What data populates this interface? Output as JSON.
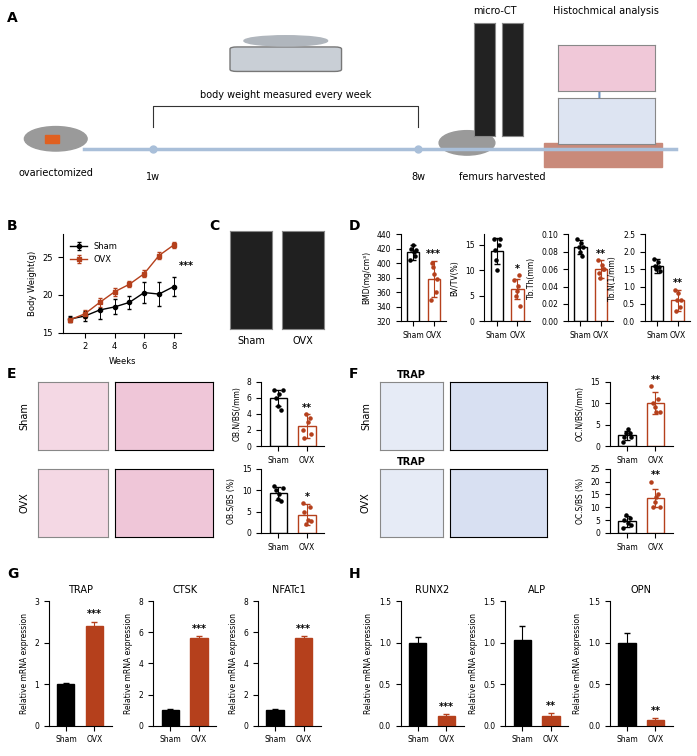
{
  "panel_labels": [
    "A",
    "B",
    "C",
    "D",
    "E",
    "F",
    "G",
    "H"
  ],
  "schematic": {
    "ovx_label": "ovariectomized",
    "measure_label": "body weight measured every week",
    "start": "1w",
    "end": "8w",
    "harvest_label": "femurs harvested",
    "microct_label": "micro-CT",
    "histo_label": "Histochmical analysis"
  },
  "image_labels": {
    "C": [
      "Sham",
      "OVX"
    ],
    "E": [
      "Sham",
      "OVX"
    ],
    "F": {
      "stain": "TRAP",
      "groups": [
        "Sham",
        "OVX"
      ]
    }
  },
  "chart_data": [
    {
      "type": "line",
      "xlabel": "Weeks",
      "ylabel": "Body Weight(g)",
      "x": [
        1,
        2,
        3,
        4,
        5,
        6,
        7,
        8
      ],
      "series": [
        {
          "name": "Sham",
          "color": "#000000",
          "marker": "circle",
          "values": [
            16.8,
            17.2,
            18.0,
            18.4,
            19.0,
            20.3,
            20.1,
            21.1
          ],
          "errors": [
            0.4,
            0.6,
            1.2,
            1.0,
            0.9,
            1.4,
            1.6,
            1.2
          ]
        },
        {
          "name": "OVX",
          "color": "#b5401c",
          "marker": "square",
          "values": [
            16.7,
            17.5,
            19.0,
            20.4,
            21.4,
            22.8,
            25.2,
            26.6
          ],
          "errors": [
            0.3,
            0.5,
            0.6,
            0.5,
            0.4,
            0.5,
            0.5,
            0.4
          ]
        }
      ],
      "xlim": [
        0.5,
        8.5
      ],
      "xticks": [
        2,
        4,
        6,
        8
      ],
      "ylim": [
        15,
        28
      ],
      "yticks": [
        15,
        20,
        25
      ],
      "legend": "upper left",
      "annotation": "***"
    },
    {
      "type": "bar",
      "ylabel": "BMD(mg/cm³)",
      "categories": [
        "Sham",
        "OVX"
      ],
      "colors": [
        "#000000",
        "#b5401c"
      ],
      "values": [
        415,
        378
      ],
      "errors": [
        10,
        25
      ],
      "points": [
        [
          405,
          420,
          425,
          415,
          410,
          418
        ],
        [
          350,
          400,
          395,
          385,
          360,
          378
        ]
      ],
      "ylim": [
        320,
        440
      ],
      "yticks": [
        320,
        340,
        360,
        380,
        400,
        420,
        440
      ],
      "annotation": "***"
    },
    {
      "type": "bar",
      "ylabel": "BV/TV(%)",
      "categories": [
        "Sham",
        "OVX"
      ],
      "colors": [
        "#000000",
        "#b5401c"
      ],
      "values": [
        13.8,
        6.3
      ],
      "errors": [
        2.5,
        2.0
      ],
      "points": [
        [
          16,
          14,
          12,
          10,
          15,
          16
        ],
        [
          8,
          5,
          6,
          7,
          9,
          3
        ]
      ],
      "ylim": [
        0,
        17
      ],
      "yticks": [
        0,
        5,
        10,
        15
      ],
      "annotation": "*"
    },
    {
      "type": "bar",
      "ylabel": "Tb.Th(mm)",
      "categories": [
        "Sham",
        "OVX"
      ],
      "colors": [
        "#000000",
        "#b5401c"
      ],
      "values": [
        0.085,
        0.06
      ],
      "errors": [
        0.008,
        0.01
      ],
      "points": [
        [
          0.095,
          0.085,
          0.08,
          0.09,
          0.075,
          0.085
        ],
        [
          0.07,
          0.055,
          0.05,
          0.065,
          0.06,
          0.06
        ]
      ],
      "ylim": [
        0,
        0.1
      ],
      "yticks": [
        {
          "value": 0,
          "label": "0.00"
        },
        {
          "value": 0.02,
          "label": "0.02"
        },
        {
          "value": 0.04,
          "label": "0.04"
        },
        {
          "value": 0.06,
          "label": "0.06"
        },
        {
          "value": 0.08,
          "label": "0.08"
        },
        {
          "value": 0.1,
          "label": "0.10"
        }
      ],
      "annotation": "**"
    },
    {
      "type": "bar",
      "ylabel": "Tb.N(1/mm)",
      "categories": [
        "Sham",
        "OVX"
      ],
      "colors": [
        "#000000",
        "#b5401c"
      ],
      "values": [
        1.6,
        0.6
      ],
      "errors": [
        0.2,
        0.3
      ],
      "points": [
        [
          1.8,
          1.6,
          1.5,
          1.7,
          1.55,
          1.45
        ],
        [
          0.9,
          0.3,
          0.6,
          0.8,
          0.4,
          0.6
        ]
      ],
      "ylim": [
        0,
        2.5
      ],
      "yticks": [
        {
          "value": 0,
          "label": "0.0"
        },
        {
          "value": 0.5,
          "label": "0.5"
        },
        {
          "value": 1,
          "label": "1.0"
        },
        {
          "value": 1.5,
          "label": "1.5"
        },
        {
          "value": 2,
          "label": "2.0"
        },
        {
          "value": 2.5,
          "label": "2.5"
        }
      ],
      "annotation": "**"
    },
    {
      "type": "bar",
      "ylabel": "OB.N/BS(/mm)",
      "categories": [
        "Sham",
        "OVX"
      ],
      "colors": [
        "#000000",
        "#b5401c"
      ],
      "values": [
        6.0,
        2.5
      ],
      "errors": [
        1.0,
        1.5
      ],
      "points": [
        [
          7,
          6,
          5,
          6.5,
          4.5,
          7
        ],
        [
          2,
          1,
          4,
          3,
          3.5,
          1.5
        ]
      ],
      "ylim": [
        0,
        8
      ],
      "yticks": [
        0,
        2,
        4,
        6,
        8
      ],
      "annotation": "**"
    },
    {
      "type": "bar",
      "ylabel": "OB.S/BS (%)",
      "categories": [
        "Sham",
        "OVX"
      ],
      "colors": [
        "#000000",
        "#b5401c"
      ],
      "values": [
        9.3,
        4.3
      ],
      "errors": [
        1.5,
        2.5
      ],
      "points": [
        [
          11,
          10,
          8,
          9,
          7.5,
          10.5
        ],
        [
          7,
          5,
          2,
          3,
          6,
          2.8
        ]
      ],
      "ylim": [
        0,
        15
      ],
      "yticks": [
        0,
        5,
        10,
        15
      ],
      "annotation": "*"
    },
    {
      "type": "bar",
      "ylabel": "OC.N/BS(/mm)",
      "categories": [
        "Sham",
        "OVX"
      ],
      "colors": [
        "#000000",
        "#b5401c"
      ],
      "values": [
        2.5,
        10
      ],
      "errors": [
        1.0,
        2.5
      ],
      "points": [
        [
          1,
          2,
          3,
          4,
          3,
          2
        ],
        [
          14,
          10,
          9,
          8,
          11,
          8
        ]
      ],
      "ylim": [
        0,
        15
      ],
      "yticks": [
        0,
        5,
        10,
        15
      ],
      "annotation": "**"
    },
    {
      "type": "bar",
      "ylabel": "OC.S/BS (%)",
      "categories": [
        "Sham",
        "OVX"
      ],
      "colors": [
        "#000000",
        "#b5401c"
      ],
      "values": [
        4.5,
        13.5
      ],
      "errors": [
        2.0,
        3.5
      ],
      "points": [
        [
          2,
          5,
          7,
          4,
          6,
          3
        ],
        [
          20,
          10,
          12,
          14,
          15,
          10
        ]
      ],
      "ylim": [
        0,
        25
      ],
      "yticks": [
        0,
        5,
        10,
        15,
        20,
        25
      ],
      "annotation": "**"
    },
    {
      "type": "bar",
      "title": "TRAP",
      "ylabel": "Relative mRNA expression",
      "categories": [
        "Sham",
        "OVX"
      ],
      "colors": [
        "#000000",
        "#b5401c"
      ],
      "values": [
        1.0,
        2.4
      ],
      "errors": [
        0.03,
        0.1
      ],
      "ylim": [
        0,
        3
      ],
      "yticks": [
        0,
        1,
        2,
        3
      ],
      "annotation": "***"
    },
    {
      "type": "bar",
      "title": "CTSK",
      "ylabel": "Relative mRNA expression",
      "categories": [
        "Sham",
        "OVX"
      ],
      "colors": [
        "#000000",
        "#b5401c"
      ],
      "values": [
        1.0,
        5.6
      ],
      "errors": [
        0.05,
        0.15
      ],
      "ylim": [
        0,
        8
      ],
      "yticks": [
        0,
        2,
        4,
        6,
        8
      ],
      "annotation": "***"
    },
    {
      "type": "bar",
      "title": "NFATc1",
      "ylabel": "Relative mRNA expression",
      "categories": [
        "Sham",
        "OVX"
      ],
      "colors": [
        "#000000",
        "#b5401c"
      ],
      "values": [
        1.0,
        5.6
      ],
      "errors": [
        0.05,
        0.15
      ],
      "ylim": [
        0,
        8
      ],
      "yticks": [
        0,
        2,
        4,
        6,
        8
      ],
      "annotation": "***"
    },
    {
      "type": "bar",
      "title": "RUNX2",
      "ylabel": "Relative mRNA expression",
      "categories": [
        "Sham",
        "OVX"
      ],
      "colors": [
        "#000000",
        "#b5401c"
      ],
      "values": [
        1.0,
        0.12
      ],
      "errors": [
        0.07,
        0.02
      ],
      "ylim": [
        0,
        1.5
      ],
      "yticks": [
        {
          "value": 0,
          "label": "0.0"
        },
        {
          "value": 0.5,
          "label": "0.5"
        },
        {
          "value": 1,
          "label": "1.0"
        },
        {
          "value": 1.5,
          "label": "1.5"
        }
      ],
      "annotation": "***"
    },
    {
      "type": "bar",
      "title": "ALP",
      "ylabel": "Relative mRNA expression",
      "categories": [
        "Sham",
        "OVX"
      ],
      "colors": [
        "#000000",
        "#b5401c"
      ],
      "values": [
        1.03,
        0.12
      ],
      "errors": [
        0.17,
        0.03
      ],
      "ylim": [
        0,
        1.5
      ],
      "yticks": [
        {
          "value": 0,
          "label": "0.0"
        },
        {
          "value": 0.5,
          "label": "0.5"
        },
        {
          "value": 1,
          "label": "1.0"
        },
        {
          "value": 1.5,
          "label": "1.5"
        }
      ],
      "annotation": "**"
    },
    {
      "type": "bar",
      "title": "OPN",
      "ylabel": "Relative mRNA expression",
      "categories": [
        "Sham",
        "OVX"
      ],
      "colors": [
        "#000000",
        "#b5401c"
      ],
      "values": [
        1.0,
        0.07
      ],
      "errors": [
        0.12,
        0.02
      ],
      "ylim": [
        0,
        1.5
      ],
      "yticks": [
        {
          "value": 0,
          "label": "0.0"
        },
        {
          "value": 0.5,
          "label": "0.5"
        },
        {
          "value": 1,
          "label": "1.0"
        },
        {
          "value": 1.5,
          "label": "1.5"
        }
      ],
      "annotation": "**"
    }
  ]
}
